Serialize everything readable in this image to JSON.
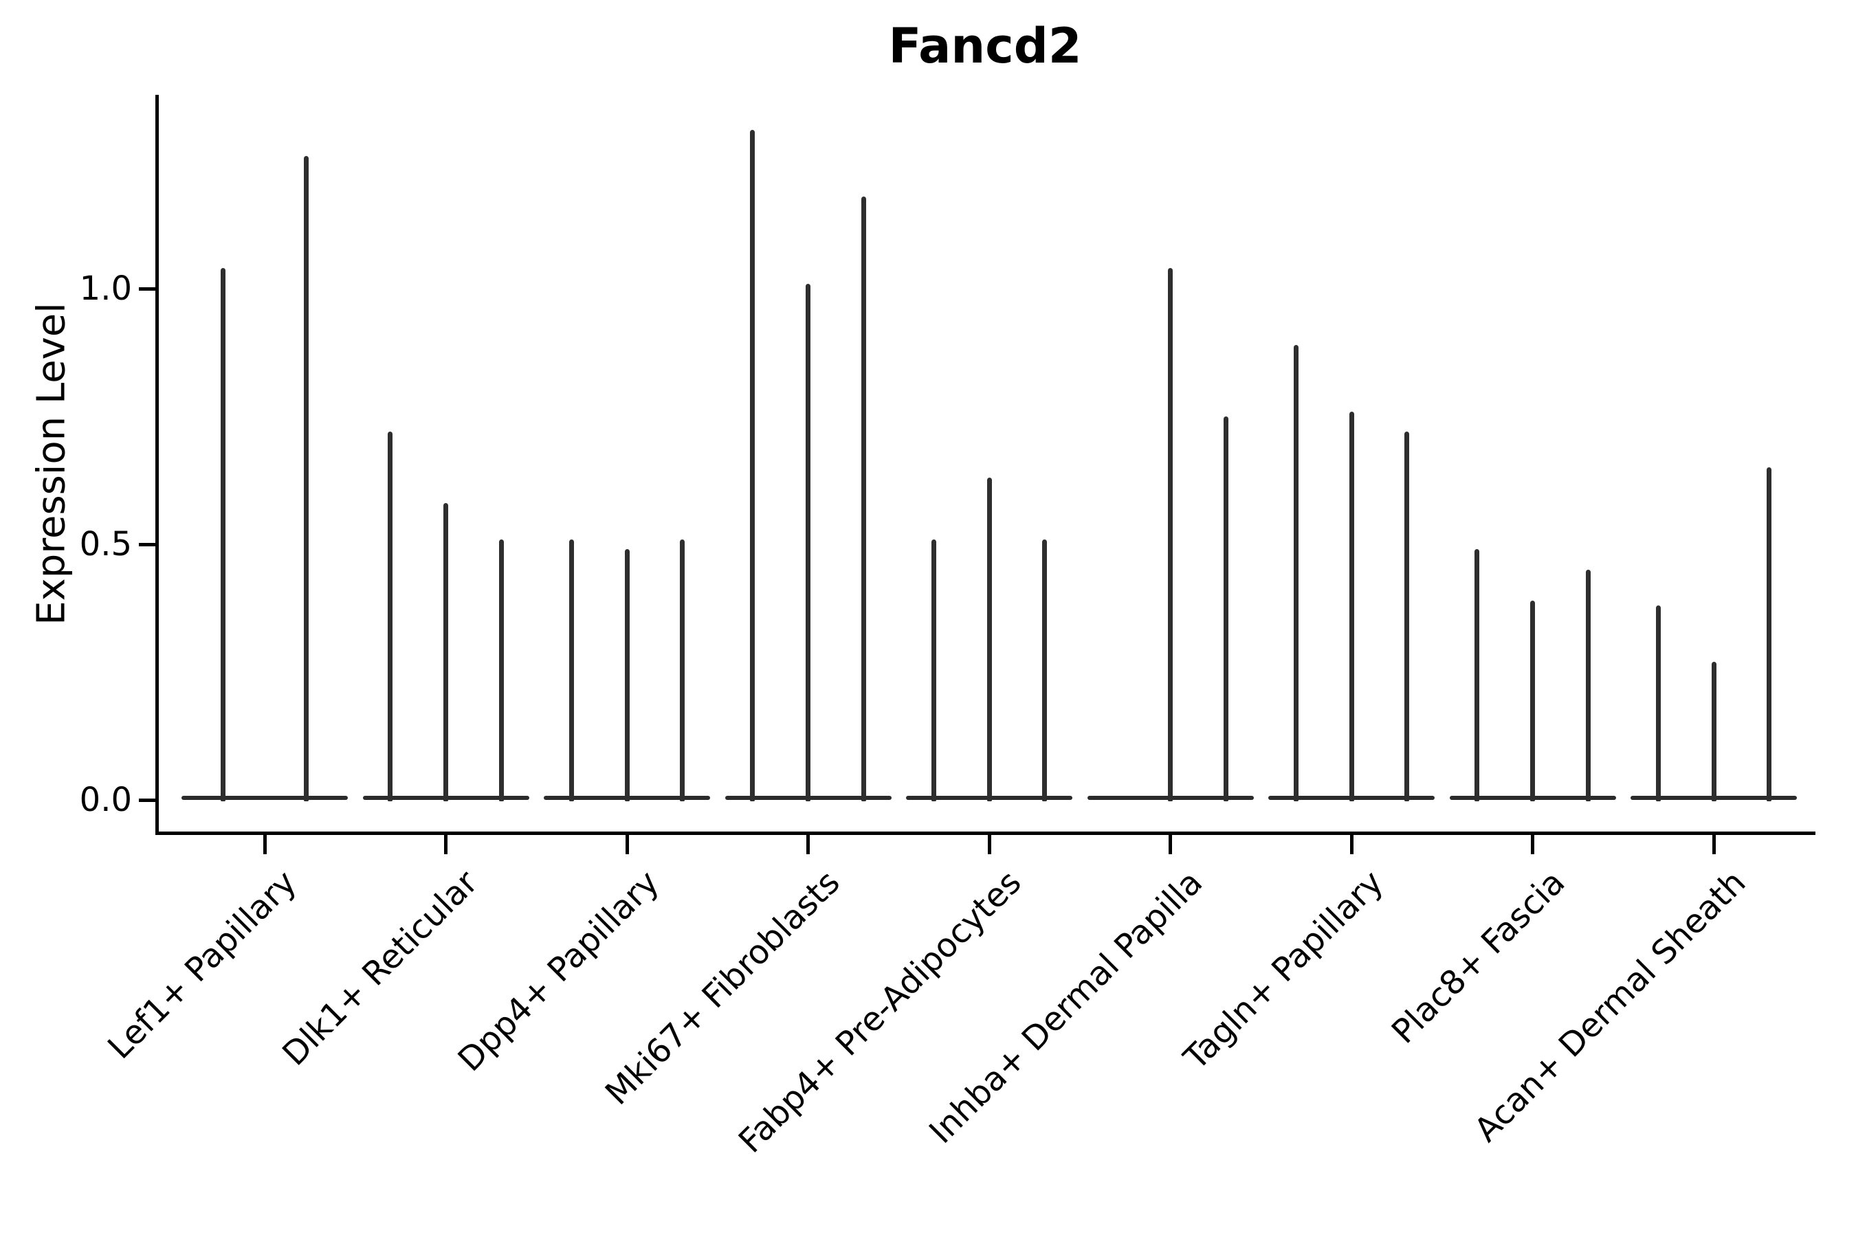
{
  "chart_data": {
    "type": "violin",
    "title": "Fancd2",
    "ylabel": "Expression Level",
    "xlabel": "",
    "grid": false,
    "legend": "none",
    "ylim": [
      -0.06,
      1.38
    ],
    "yticks": [
      "0.0",
      "0.5",
      "1.0"
    ],
    "ytick_values": [
      0.0,
      0.5,
      1.0
    ],
    "categories": [
      "Lef1+ Papillary",
      "Dlk1+ Reticular",
      "Dpp4+ Papillary",
      "Mki67+ Fibroblasts",
      "Fabp4+ Pre-Adipocytes",
      "Inhba+ Dermal Papilla",
      "Tagln+ Papillary",
      "Plac8+ Fascia",
      "Acan+ Dermal Sheath"
    ],
    "groups": [
      {
        "label": "Lef1+ Papillary",
        "violin_max_values": [
          1.04,
          1.26
        ]
      },
      {
        "label": "Dlk1+ Reticular",
        "violin_max_values": [
          0.72,
          0.58,
          0.51
        ]
      },
      {
        "label": "Dpp4+ Papillary",
        "violin_max_values": [
          0.51,
          0.49,
          0.51
        ]
      },
      {
        "label": "Mki67+ Fibroblasts",
        "violin_max_values": [
          1.31,
          1.01,
          1.18
        ]
      },
      {
        "label": "Fabp4+ Pre-Adipocytes",
        "violin_max_values": [
          0.51,
          0.63,
          0.51
        ]
      },
      {
        "label": "Inhba+ Dermal Papilla",
        "violin_max_values": [
          0.0,
          1.04,
          0.75
        ]
      },
      {
        "label": "Tagln+ Papillary",
        "violin_max_values": [
          0.89,
          0.76,
          0.72
        ]
      },
      {
        "label": "Plac8+ Fascia",
        "violin_max_values": [
          0.49,
          0.39,
          0.45
        ]
      },
      {
        "label": "Acan+ Dermal Sheath",
        "violin_max_values": [
          0.38,
          0.27,
          0.65
        ]
      }
    ],
    "colors": {
      "violin": "#2b2b2b",
      "axis": "#000000",
      "text": "#000000",
      "background": "#ffffff"
    }
  }
}
